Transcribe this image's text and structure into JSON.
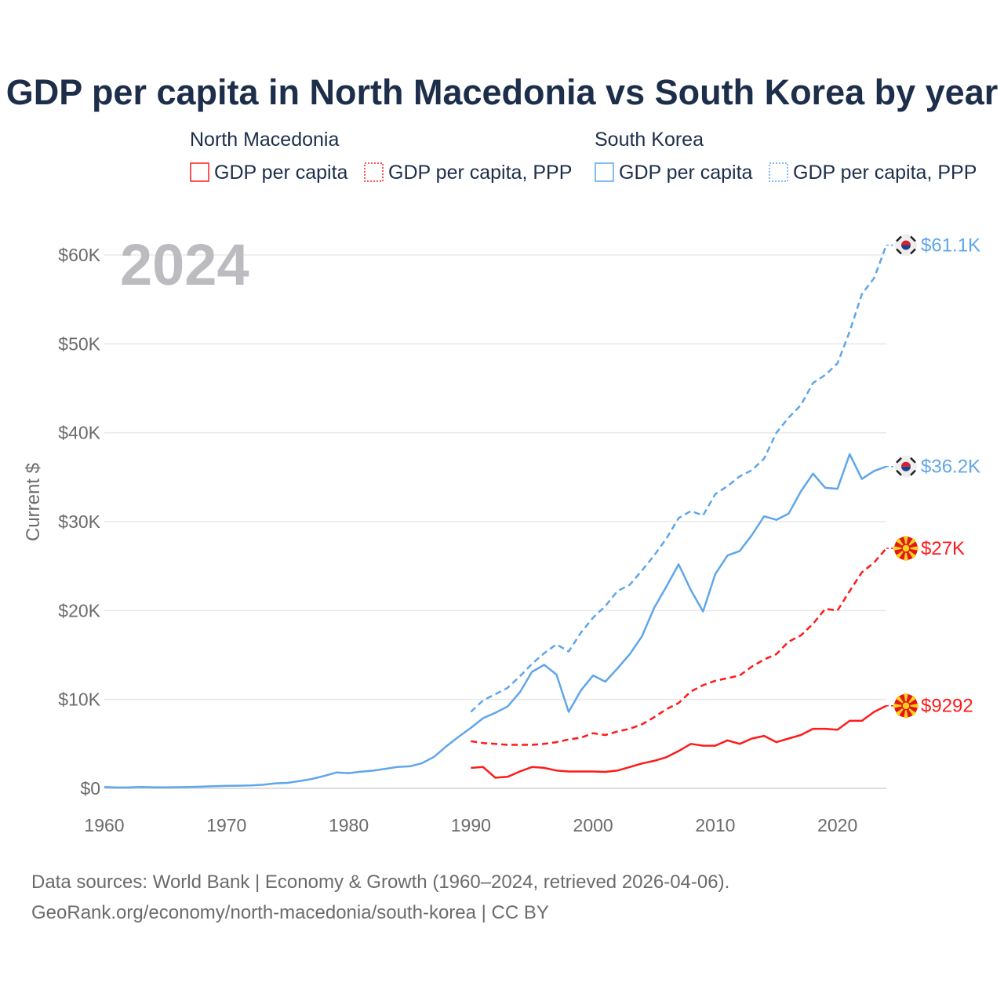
{
  "colors": {
    "north_macedonia": "#ff1a1a",
    "south_korea": "#5fa6ea",
    "title": "#1c2e4a",
    "grid": "#e8e8e8"
  },
  "legend": {
    "groups": [
      {
        "name": "North Macedonia",
        "items": [
          "GDP per capita",
          "GDP per capita, PPP"
        ]
      },
      {
        "name": "South Korea",
        "items": [
          "GDP per capita",
          "GDP per capita, PPP"
        ]
      }
    ]
  },
  "year_overlay": "2024",
  "footer": {
    "line1": "Data sources: World Bank | Economy & Growth (1960–2024, retrieved 2026-04-06).",
    "line2": "GeoRank.org/economy/north-macedonia/south-korea | CC BY"
  },
  "chart_data": {
    "type": "line",
    "title": "GDP per capita in North Macedonia vs South Korea by year",
    "xlabel": "",
    "ylabel": "Current $",
    "xlim": [
      1960,
      2024
    ],
    "ylim": [
      0,
      60000
    ],
    "xticks": [
      1960,
      1970,
      1980,
      1990,
      2000,
      2010,
      2020
    ],
    "yticks": [
      0,
      10000,
      20000,
      30000,
      40000,
      50000,
      60000
    ],
    "ytick_labels": [
      "$0",
      "$10K",
      "$20K",
      "$30K",
      "$40K",
      "$50K",
      "$60K"
    ],
    "grid": true,
    "legend_position": "top",
    "series": [
      {
        "name": "South Korea GDP per capita, PPP",
        "country": "south_korea",
        "dash": true,
        "end_label": "$61.1K",
        "flag": "south-korea",
        "x_start": 1990,
        "values": [
          8600,
          9900,
          10600,
          11300,
          12600,
          14000,
          15200,
          16200,
          15400,
          17500,
          19200,
          20500,
          22200,
          22900,
          24500,
          26200,
          28100,
          30400,
          31200,
          30700,
          33100,
          34000,
          35100,
          35800,
          37100,
          40000,
          41700,
          43100,
          45600,
          46500,
          47800,
          51400,
          55600,
          57400,
          61100
        ]
      },
      {
        "name": "South Korea GDP per capita",
        "country": "south_korea",
        "dash": false,
        "end_label": "$36.2K",
        "flag": "south-korea",
        "x_start": 1960,
        "values": [
          158,
          94,
          106,
          146,
          124,
          109,
          133,
          161,
          198,
          243,
          279,
          301,
          324,
          407,
          563,
          616,
          830,
          1055,
          1406,
          1784,
          1715,
          1883,
          1993,
          2199,
          2413,
          2482,
          2835,
          3555,
          4749,
          5818,
          6800,
          7900,
          8500,
          9200,
          10800,
          13100,
          13900,
          12800,
          8600,
          11000,
          12700,
          12000,
          13500,
          15100,
          17100,
          20300,
          22700,
          25200,
          22300,
          19900,
          24100,
          26200,
          26700,
          28500,
          30600,
          30200,
          30900,
          33400,
          35400,
          33800,
          33700,
          37600,
          34800,
          35700,
          36200
        ]
      },
      {
        "name": "North Macedonia GDP per capita, PPP",
        "country": "north_macedonia",
        "dash": true,
        "end_label": "$27K",
        "flag": "north-macedonia",
        "x_start": 1990,
        "values": [
          5300,
          5100,
          5000,
          4900,
          4900,
          4900,
          5000,
          5200,
          5500,
          5700,
          6200,
          6000,
          6400,
          6700,
          7200,
          8000,
          8900,
          9600,
          10900,
          11600,
          12100,
          12400,
          12700,
          13700,
          14500,
          15100,
          16500,
          17200,
          18500,
          20200,
          20000,
          22200,
          24300,
          25400,
          27000
        ]
      },
      {
        "name": "North Macedonia GDP per capita",
        "country": "north_macedonia",
        "dash": false,
        "end_label": "$9292",
        "flag": "north-macedonia",
        "x_start": 1990,
        "values": [
          2300,
          2400,
          1200,
          1300,
          1900,
          2400,
          2300,
          2000,
          1900,
          1900,
          1900,
          1850,
          2000,
          2400,
          2800,
          3100,
          3500,
          4200,
          5000,
          4800,
          4800,
          5400,
          5000,
          5600,
          5900,
          5200,
          5600,
          6000,
          6700,
          6700,
          6600,
          7600,
          7600,
          8600,
          9292
        ]
      }
    ]
  }
}
